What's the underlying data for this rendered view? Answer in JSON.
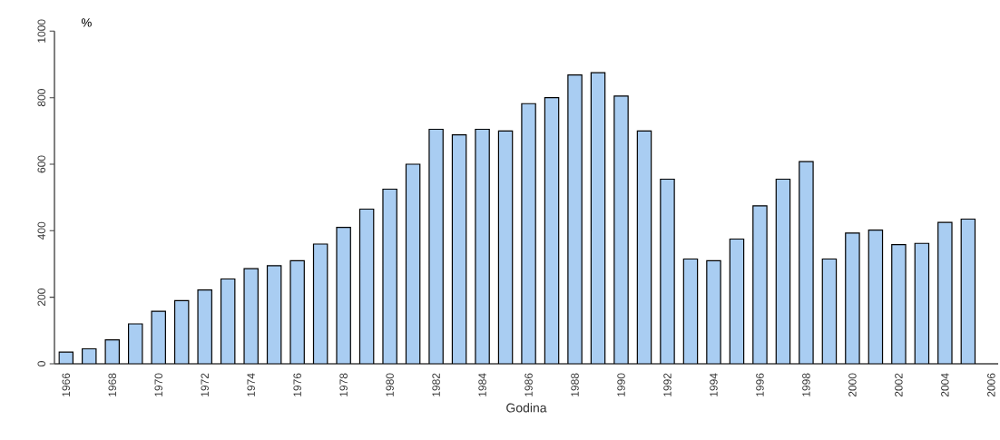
{
  "chart_data": {
    "type": "bar",
    "xlabel": "Godina",
    "ylabel": "%",
    "x": [
      1966,
      1967,
      1968,
      1969,
      1970,
      1971,
      1972,
      1973,
      1974,
      1975,
      1976,
      1977,
      1978,
      1979,
      1980,
      1981,
      1982,
      1983,
      1984,
      1985,
      1986,
      1987,
      1988,
      1989,
      1990,
      1991,
      1992,
      1993,
      1994,
      1995,
      1996,
      1997,
      1998,
      1999,
      2000,
      2001,
      2002,
      2003,
      2004,
      2005
    ],
    "values": [
      35,
      45,
      72,
      120,
      158,
      190,
      222,
      255,
      286,
      295,
      310,
      360,
      410,
      465,
      525,
      600,
      705,
      688,
      705,
      700,
      782,
      800,
      868,
      875,
      805,
      700,
      555,
      315,
      310,
      375,
      475,
      555,
      608,
      315,
      393,
      402,
      358,
      362,
      425,
      435
    ],
    "color": "#a9cdf2",
    "xlim": [
      1965.5,
      2006.3
    ],
    "xticks": [
      1966,
      1968,
      1970,
      1972,
      1974,
      1976,
      1978,
      1980,
      1982,
      1984,
      1986,
      1988,
      1990,
      1992,
      1994,
      1996,
      1998,
      2000,
      2002,
      2004,
      2006
    ],
    "ylim": [
      0,
      1000
    ],
    "yticks": [
      0,
      200,
      400,
      600,
      800,
      1000
    ]
  }
}
